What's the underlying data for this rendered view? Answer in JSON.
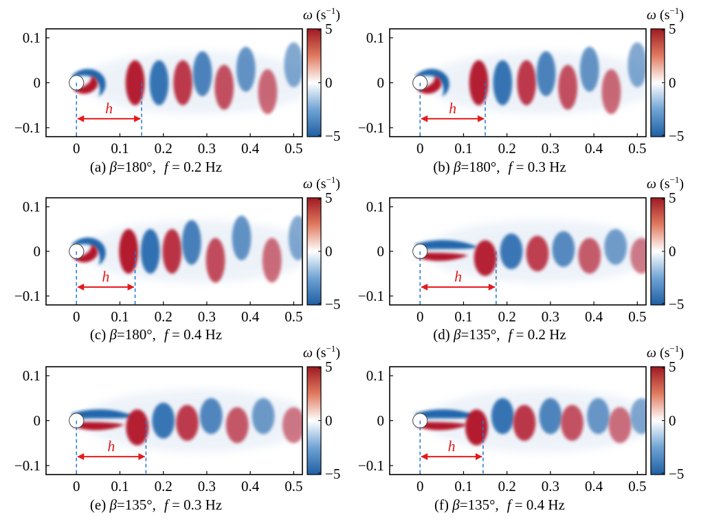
{
  "colors": {
    "positive": "#b2182b",
    "negative": "#2166ac",
    "neutral": "#ffffff",
    "marker": "#e41a1c",
    "guide": "#2b7bd4"
  },
  "chart_data": [
    {
      "type": "heatmap",
      "label_prefix": "(a) ",
      "beta_symbol": "β",
      "beta": "=180°,",
      "f_symbol": "f",
      "f_value": " = 0.2 Hz",
      "h_label": "h",
      "h_end": 0.15,
      "x_ticks": [
        "0",
        "0.1",
        "0.2",
        "0.3",
        "0.4",
        "0.5"
      ],
      "y_ticks": [
        "0.1",
        "0",
        "−0.1"
      ],
      "xlim": [
        -0.07,
        0.52
      ],
      "ylim": [
        -0.12,
        0.12
      ],
      "cbar_ticks": [
        "5",
        "0",
        "−5"
      ],
      "cbar_range": [
        -5,
        5
      ],
      "cbar_symbol": "ω",
      "cbar_unit": " (s",
      "cbar_exp": "−1",
      "cbar_close": ")",
      "pattern": "symmetric",
      "vortices": [
        {
          "x": 0.135,
          "y": 0.0,
          "sign": 1
        },
        {
          "x": 0.19,
          "y": 0.0,
          "sign": -1
        },
        {
          "x": 0.245,
          "y": 0.0,
          "sign": 1
        },
        {
          "x": 0.29,
          "y": 0.02,
          "sign": -1
        },
        {
          "x": 0.34,
          "y": -0.01,
          "sign": 1
        },
        {
          "x": 0.39,
          "y": 0.03,
          "sign": -1
        },
        {
          "x": 0.44,
          "y": -0.02,
          "sign": 1
        },
        {
          "x": 0.5,
          "y": 0.04,
          "sign": -1
        }
      ]
    },
    {
      "type": "heatmap",
      "label_prefix": "(b) ",
      "beta_symbol": "β",
      "beta": "=180°,",
      "f_symbol": "f",
      "f_value": " = 0.3 Hz",
      "h_label": "h",
      "h_end": 0.15,
      "x_ticks": [
        "0",
        "0.1",
        "0.2",
        "0.3",
        "0.4",
        "0.5"
      ],
      "y_ticks": [
        "0.1",
        "0",
        "−0.1"
      ],
      "xlim": [
        -0.07,
        0.52
      ],
      "ylim": [
        -0.12,
        0.12
      ],
      "cbar_ticks": [
        "5",
        "0",
        "−5"
      ],
      "cbar_range": [
        -5,
        5
      ],
      "cbar_symbol": "ω",
      "cbar_unit": " (s",
      "cbar_exp": "−1",
      "cbar_close": ")",
      "pattern": "symmetric",
      "vortices": [
        {
          "x": 0.135,
          "y": 0.0,
          "sign": 1
        },
        {
          "x": 0.19,
          "y": 0.0,
          "sign": -1
        },
        {
          "x": 0.245,
          "y": 0.0,
          "sign": 1
        },
        {
          "x": 0.29,
          "y": 0.02,
          "sign": -1
        },
        {
          "x": 0.34,
          "y": -0.01,
          "sign": 1
        },
        {
          "x": 0.39,
          "y": 0.03,
          "sign": -1
        },
        {
          "x": 0.44,
          "y": -0.02,
          "sign": 1
        },
        {
          "x": 0.5,
          "y": 0.04,
          "sign": -1
        }
      ]
    },
    {
      "type": "heatmap",
      "label_prefix": "(c) ",
      "beta_symbol": "β",
      "beta": "=180°,",
      "f_symbol": "f",
      "f_value": " = 0.4 Hz",
      "h_label": "h",
      "h_end": 0.135,
      "x_ticks": [
        "0",
        "0.1",
        "0.2",
        "0.3",
        "0.4",
        "0.5"
      ],
      "y_ticks": [
        "0.1",
        "0",
        "−0.1"
      ],
      "xlim": [
        -0.07,
        0.52
      ],
      "ylim": [
        -0.12,
        0.12
      ],
      "cbar_ticks": [
        "5",
        "0",
        "−5"
      ],
      "cbar_range": [
        -5,
        5
      ],
      "cbar_symbol": "ω",
      "cbar_unit": " (s",
      "cbar_exp": "−1",
      "cbar_close": ")",
      "pattern": "symmetric",
      "vortices": [
        {
          "x": 0.12,
          "y": 0.0,
          "sign": 1
        },
        {
          "x": 0.17,
          "y": 0.0,
          "sign": -1
        },
        {
          "x": 0.22,
          "y": 0.0,
          "sign": 1
        },
        {
          "x": 0.265,
          "y": 0.02,
          "sign": -1
        },
        {
          "x": 0.32,
          "y": -0.02,
          "sign": 1
        },
        {
          "x": 0.38,
          "y": 0.03,
          "sign": -1
        },
        {
          "x": 0.45,
          "y": -0.02,
          "sign": 1
        },
        {
          "x": 0.51,
          "y": 0.03,
          "sign": -1
        }
      ]
    },
    {
      "type": "heatmap",
      "label_prefix": "(d) ",
      "beta_symbol": "β",
      "beta": "=135°,",
      "f_symbol": "f",
      "f_value": " = 0.2 Hz",
      "h_label": "h",
      "h_end": 0.175,
      "x_ticks": [
        "0",
        "0.1",
        "0.2",
        "0.3",
        "0.4",
        "0.5"
      ],
      "y_ticks": [
        "0.1",
        "0",
        "−0.1"
      ],
      "xlim": [
        -0.07,
        0.52
      ],
      "ylim": [
        -0.12,
        0.12
      ],
      "cbar_ticks": [
        "5",
        "0",
        "−5"
      ],
      "cbar_range": [
        -5,
        5
      ],
      "cbar_symbol": "ω",
      "cbar_unit": " (s",
      "cbar_exp": "−1",
      "cbar_close": ")",
      "pattern": "elongated",
      "vortices": [
        {
          "x": 0.15,
          "y": -0.015,
          "sign": 1
        },
        {
          "x": 0.21,
          "y": 0.0,
          "sign": -1
        },
        {
          "x": 0.27,
          "y": -0.005,
          "sign": 1
        },
        {
          "x": 0.33,
          "y": 0.005,
          "sign": -1
        },
        {
          "x": 0.39,
          "y": -0.01,
          "sign": 1
        },
        {
          "x": 0.45,
          "y": 0.01,
          "sign": -1
        },
        {
          "x": 0.51,
          "y": -0.01,
          "sign": 1
        }
      ]
    },
    {
      "type": "heatmap",
      "label_prefix": "(e) ",
      "beta_symbol": "β",
      "beta": "=135°,",
      "f_symbol": "f",
      "f_value": " = 0.3 Hz",
      "h_label": "h",
      "h_end": 0.16,
      "x_ticks": [
        "0",
        "0.1",
        "0.2",
        "0.3",
        "0.4",
        "0.5"
      ],
      "y_ticks": [
        "0.1",
        "0",
        "−0.1"
      ],
      "xlim": [
        -0.07,
        0.52
      ],
      "ylim": [
        -0.12,
        0.12
      ],
      "cbar_ticks": [
        "5",
        "0",
        "−5"
      ],
      "cbar_range": [
        -5,
        5
      ],
      "cbar_symbol": "ω",
      "cbar_unit": " (s",
      "cbar_exp": "−1",
      "cbar_close": ")",
      "pattern": "elongated",
      "vortices": [
        {
          "x": 0.14,
          "y": -0.015,
          "sign": 1
        },
        {
          "x": 0.2,
          "y": 0.0,
          "sign": -1
        },
        {
          "x": 0.255,
          "y": -0.005,
          "sign": 1
        },
        {
          "x": 0.31,
          "y": 0.01,
          "sign": -1
        },
        {
          "x": 0.37,
          "y": -0.01,
          "sign": 1
        },
        {
          "x": 0.43,
          "y": 0.01,
          "sign": -1
        },
        {
          "x": 0.5,
          "y": -0.01,
          "sign": 1
        }
      ]
    },
    {
      "type": "heatmap",
      "label_prefix": "(f) ",
      "beta_symbol": "β",
      "beta": "=135°,",
      "f_symbol": "f",
      "f_value": " = 0.4 Hz",
      "h_label": "h",
      "h_end": 0.145,
      "x_ticks": [
        "0",
        "0.1",
        "0.2",
        "0.3",
        "0.4",
        "0.5"
      ],
      "y_ticks": [
        "0.1",
        "0",
        "−0.1"
      ],
      "xlim": [
        -0.07,
        0.52
      ],
      "ylim": [
        -0.12,
        0.12
      ],
      "cbar_ticks": [
        "5",
        "0",
        "−5"
      ],
      "cbar_range": [
        -5,
        5
      ],
      "cbar_symbol": "ω",
      "cbar_unit": " (s",
      "cbar_exp": "−1",
      "cbar_close": ")",
      "pattern": "elongated",
      "vortices": [
        {
          "x": 0.13,
          "y": -0.015,
          "sign": 1
        },
        {
          "x": 0.19,
          "y": 0.01,
          "sign": -1
        },
        {
          "x": 0.24,
          "y": -0.005,
          "sign": 1
        },
        {
          "x": 0.3,
          "y": 0.01,
          "sign": -1
        },
        {
          "x": 0.35,
          "y": -0.005,
          "sign": 1
        },
        {
          "x": 0.41,
          "y": 0.01,
          "sign": -1
        },
        {
          "x": 0.46,
          "y": -0.01,
          "sign": 1
        },
        {
          "x": 0.51,
          "y": 0.01,
          "sign": -1
        }
      ]
    }
  ]
}
